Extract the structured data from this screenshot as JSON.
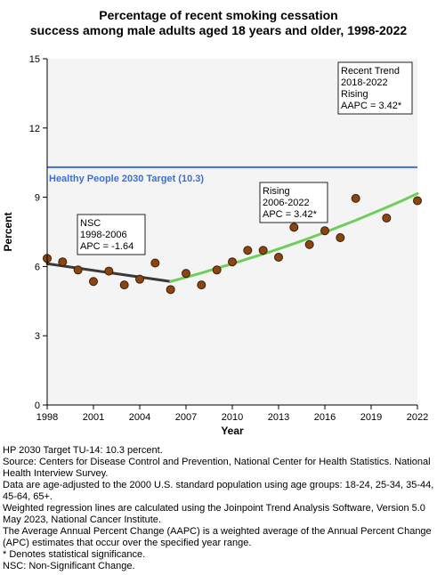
{
  "chart_data": {
    "type": "scatter",
    "title_lines": [
      "Percentage of recent smoking cessation",
      "success among male adults aged 18 years and older, 1998-2022"
    ],
    "xlabel": "Year",
    "ylabel": "Percent",
    "xlim": [
      1998,
      2022
    ],
    "ylim": [
      0,
      15
    ],
    "x_ticks": [
      1998,
      2001,
      2004,
      2007,
      2010,
      2013,
      2016,
      2019,
      2022
    ],
    "y_ticks": [
      0,
      3,
      6,
      9,
      12,
      15
    ],
    "grid": false,
    "points": {
      "x": [
        1998,
        1999,
        2000,
        2001,
        2002,
        2003,
        2004,
        2005,
        2006,
        2007,
        2008,
        2009,
        2010,
        2011,
        2012,
        2013,
        2014,
        2015,
        2016,
        2017,
        2018,
        2020,
        2022
      ],
      "y": [
        6.35,
        6.2,
        5.85,
        5.35,
        5.8,
        5.2,
        5.45,
        6.15,
        5.0,
        5.7,
        5.2,
        5.85,
        6.2,
        6.7,
        6.7,
        6.4,
        7.7,
        6.95,
        7.55,
        7.25,
        8.95,
        8.1,
        8.85
      ]
    },
    "trend_segments": [
      {
        "x": [
          1998,
          2006
        ],
        "y": [
          6.12,
          5.35
        ],
        "color": "#3a3a3a"
      },
      {
        "x": [
          2006,
          2007,
          2008,
          2009,
          2010,
          2011,
          2012,
          2013,
          2014,
          2015,
          2016,
          2017,
          2018,
          2019,
          2020,
          2021,
          2022
        ],
        "y": [
          5.35,
          5.53,
          5.72,
          5.92,
          6.12,
          6.33,
          6.54,
          6.76,
          6.99,
          7.23,
          7.48,
          7.74,
          8.0,
          8.28,
          8.56,
          8.85,
          9.16
        ],
        "color": "#6dce5c"
      }
    ],
    "target": {
      "value": 10.3,
      "label": "Healthy People 2030 Target (10.3)",
      "color": "#3b6fd6"
    },
    "annotations": [
      {
        "lines": [
          "NSC",
          "1998-2006",
          "APC = -1.64"
        ]
      },
      {
        "lines": [
          "Rising",
          "2006-2022",
          "APC =  3.42*"
        ]
      },
      {
        "lines": [
          "Recent Trend",
          "2018-2022",
          "Rising",
          "AAPC =  3.42*"
        ]
      }
    ],
    "colors": {
      "point_fill": "#8b4513",
      "point_stroke": "#3b1f06",
      "plot_bg": "#f4f4f4"
    }
  },
  "notes": [
    "HP 2030 Target TU-14: 10.3 percent.",
    "Source: Centers for Disease Control and Prevention, National Center for Health Statistics. National Health Interview Survey.",
    "Data are age-adjusted to the 2000 U.S. standard population using age groups: 18-24, 25-34, 35-44, 45-64, 65+.",
    "Weighted regression lines are calculated using the Joinpoint Trend Analysis Software, Version 5.0 May 2023, National Cancer Institute.",
    "The Average Annual Percent Change (AAPC) is a weighted average of the Annual Percent Change (APC) estimates that occur over the specified year range.",
    "* Denotes statistical significance.",
    "NSC: Non-Significant Change."
  ]
}
